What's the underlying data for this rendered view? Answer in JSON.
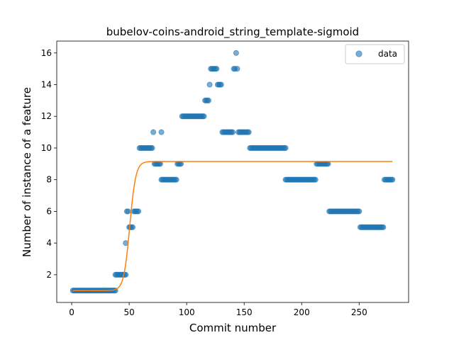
{
  "chart_data": {
    "type": "scatter",
    "title": "bubelov-coins-android_string_template-sigmoid",
    "xlabel": "Commit number",
    "ylabel": "Number of instance of a feature",
    "xlim": [
      -13,
      293
    ],
    "ylim": [
      0.25,
      16.75
    ],
    "xticks": [
      0,
      50,
      100,
      150,
      200,
      250
    ],
    "yticks": [
      2,
      4,
      6,
      8,
      10,
      12,
      14,
      16
    ],
    "legend": {
      "position": "top-right"
    },
    "colors": {
      "data": "#1f77b4",
      "fit": "#ff7f0e"
    },
    "series": [
      {
        "name": "data",
        "kind": "scatter",
        "points": [
          [
            1,
            1
          ],
          [
            2,
            1
          ],
          [
            3,
            1
          ],
          [
            4,
            1
          ],
          [
            5,
            1
          ],
          [
            6,
            1
          ],
          [
            7,
            1
          ],
          [
            8,
            1
          ],
          [
            9,
            1
          ],
          [
            10,
            1
          ],
          [
            11,
            1
          ],
          [
            12,
            1
          ],
          [
            13,
            1
          ],
          [
            14,
            1
          ],
          [
            15,
            1
          ],
          [
            16,
            1
          ],
          [
            17,
            1
          ],
          [
            18,
            1
          ],
          [
            19,
            1
          ],
          [
            20,
            1
          ],
          [
            21,
            1
          ],
          [
            22,
            1
          ],
          [
            23,
            1
          ],
          [
            24,
            1
          ],
          [
            25,
            1
          ],
          [
            26,
            1
          ],
          [
            27,
            1
          ],
          [
            28,
            1
          ],
          [
            29,
            1
          ],
          [
            30,
            1
          ],
          [
            31,
            1
          ],
          [
            32,
            1
          ],
          [
            33,
            1
          ],
          [
            34,
            1
          ],
          [
            35,
            1
          ],
          [
            36,
            1
          ],
          [
            37,
            1
          ],
          [
            38,
            1
          ],
          [
            38,
            2
          ],
          [
            39,
            2
          ],
          [
            40,
            2
          ],
          [
            41,
            2
          ],
          [
            42,
            2
          ],
          [
            43,
            2
          ],
          [
            44,
            2
          ],
          [
            45,
            2
          ],
          [
            46,
            2
          ],
          [
            47,
            2
          ],
          [
            47,
            4
          ],
          [
            48,
            6
          ],
          [
            49,
            6
          ],
          [
            50,
            5
          ],
          [
            51,
            5
          ],
          [
            52,
            5
          ],
          [
            53,
            5
          ],
          [
            54,
            6
          ],
          [
            55,
            6
          ],
          [
            56,
            6
          ],
          [
            57,
            6
          ],
          [
            58,
            6
          ],
          [
            59,
            10
          ],
          [
            60,
            10
          ],
          [
            61,
            10
          ],
          [
            62,
            10
          ],
          [
            63,
            10
          ],
          [
            64,
            10
          ],
          [
            65,
            10
          ],
          [
            66,
            10
          ],
          [
            67,
            10
          ],
          [
            68,
            10
          ],
          [
            69,
            10
          ],
          [
            70,
            10
          ],
          [
            71,
            11
          ],
          [
            72,
            9
          ],
          [
            73,
            9
          ],
          [
            74,
            9
          ],
          [
            75,
            9
          ],
          [
            76,
            9
          ],
          [
            77,
            9
          ],
          [
            78,
            11
          ],
          [
            78,
            8
          ],
          [
            79,
            8
          ],
          [
            80,
            8
          ],
          [
            81,
            8
          ],
          [
            82,
            8
          ],
          [
            83,
            8
          ],
          [
            84,
            8
          ],
          [
            85,
            8
          ],
          [
            86,
            8
          ],
          [
            87,
            8
          ],
          [
            88,
            8
          ],
          [
            89,
            8
          ],
          [
            90,
            8
          ],
          [
            91,
            8
          ],
          [
            92,
            9
          ],
          [
            93,
            9
          ],
          [
            94,
            9
          ],
          [
            95,
            9
          ],
          [
            96,
            12
          ],
          [
            97,
            12
          ],
          [
            98,
            12
          ],
          [
            99,
            12
          ],
          [
            100,
            12
          ],
          [
            101,
            12
          ],
          [
            102,
            12
          ],
          [
            103,
            12
          ],
          [
            104,
            12
          ],
          [
            105,
            12
          ],
          [
            106,
            12
          ],
          [
            107,
            12
          ],
          [
            108,
            12
          ],
          [
            109,
            12
          ],
          [
            110,
            12
          ],
          [
            111,
            12
          ],
          [
            112,
            12
          ],
          [
            113,
            12
          ],
          [
            114,
            12
          ],
          [
            115,
            12
          ],
          [
            116,
            13
          ],
          [
            117,
            13
          ],
          [
            118,
            13
          ],
          [
            119,
            13
          ],
          [
            120,
            14
          ],
          [
            121,
            15
          ],
          [
            122,
            15
          ],
          [
            123,
            15
          ],
          [
            124,
            15
          ],
          [
            125,
            15
          ],
          [
            126,
            15
          ],
          [
            127,
            14
          ],
          [
            128,
            14
          ],
          [
            129,
            14
          ],
          [
            130,
            14
          ],
          [
            131,
            11
          ],
          [
            132,
            11
          ],
          [
            133,
            11
          ],
          [
            134,
            11
          ],
          [
            135,
            11
          ],
          [
            136,
            11
          ],
          [
            137,
            11
          ],
          [
            138,
            11
          ],
          [
            139,
            11
          ],
          [
            140,
            11
          ],
          [
            141,
            15
          ],
          [
            142,
            15
          ],
          [
            143,
            16
          ],
          [
            144,
            15
          ],
          [
            145,
            11
          ],
          [
            146,
            11
          ],
          [
            147,
            11
          ],
          [
            148,
            11
          ],
          [
            149,
            11
          ],
          [
            150,
            11
          ],
          [
            151,
            11
          ],
          [
            152,
            11
          ],
          [
            153,
            11
          ],
          [
            154,
            11
          ],
          [
            155,
            10
          ],
          [
            156,
            10
          ],
          [
            157,
            10
          ],
          [
            158,
            10
          ],
          [
            159,
            10
          ],
          [
            160,
            10
          ],
          [
            161,
            10
          ],
          [
            162,
            10
          ],
          [
            163,
            10
          ],
          [
            164,
            10
          ],
          [
            165,
            10
          ],
          [
            166,
            10
          ],
          [
            167,
            10
          ],
          [
            168,
            10
          ],
          [
            169,
            10
          ],
          [
            170,
            10
          ],
          [
            171,
            10
          ],
          [
            172,
            10
          ],
          [
            173,
            10
          ],
          [
            174,
            10
          ],
          [
            175,
            10
          ],
          [
            176,
            10
          ],
          [
            177,
            10
          ],
          [
            178,
            10
          ],
          [
            179,
            10
          ],
          [
            180,
            10
          ],
          [
            181,
            10
          ],
          [
            182,
            10
          ],
          [
            183,
            10
          ],
          [
            184,
            10
          ],
          [
            185,
            10
          ],
          [
            186,
            10
          ],
          [
            186,
            8
          ],
          [
            187,
            8
          ],
          [
            188,
            8
          ],
          [
            189,
            8
          ],
          [
            190,
            8
          ],
          [
            191,
            8
          ],
          [
            192,
            8
          ],
          [
            193,
            8
          ],
          [
            194,
            8
          ],
          [
            195,
            8
          ],
          [
            196,
            8
          ],
          [
            197,
            8
          ],
          [
            198,
            8
          ],
          [
            199,
            8
          ],
          [
            200,
            8
          ],
          [
            201,
            8
          ],
          [
            202,
            8
          ],
          [
            203,
            8
          ],
          [
            204,
            8
          ],
          [
            205,
            8
          ],
          [
            206,
            8
          ],
          [
            207,
            8
          ],
          [
            208,
            8
          ],
          [
            209,
            8
          ],
          [
            210,
            8
          ],
          [
            211,
            8
          ],
          [
            212,
            8
          ],
          [
            213,
            9
          ],
          [
            214,
            9
          ],
          [
            215,
            9
          ],
          [
            216,
            9
          ],
          [
            217,
            9
          ],
          [
            218,
            9
          ],
          [
            219,
            9
          ],
          [
            220,
            9
          ],
          [
            221,
            9
          ],
          [
            222,
            9
          ],
          [
            223,
            9
          ],
          [
            224,
            6
          ],
          [
            225,
            6
          ],
          [
            226,
            6
          ],
          [
            227,
            6
          ],
          [
            228,
            6
          ],
          [
            229,
            6
          ],
          [
            230,
            6
          ],
          [
            231,
            6
          ],
          [
            232,
            6
          ],
          [
            233,
            6
          ],
          [
            234,
            6
          ],
          [
            235,
            6
          ],
          [
            236,
            6
          ],
          [
            237,
            6
          ],
          [
            238,
            6
          ],
          [
            239,
            6
          ],
          [
            240,
            6
          ],
          [
            241,
            6
          ],
          [
            242,
            6
          ],
          [
            243,
            6
          ],
          [
            244,
            6
          ],
          [
            245,
            6
          ],
          [
            246,
            6
          ],
          [
            247,
            6
          ],
          [
            248,
            6
          ],
          [
            249,
            6
          ],
          [
            250,
            6
          ],
          [
            251,
            5
          ],
          [
            252,
            5
          ],
          [
            253,
            5
          ],
          [
            254,
            5
          ],
          [
            255,
            5
          ],
          [
            256,
            5
          ],
          [
            257,
            5
          ],
          [
            258,
            5
          ],
          [
            259,
            5
          ],
          [
            260,
            5
          ],
          [
            261,
            5
          ],
          [
            262,
            5
          ],
          [
            263,
            5
          ],
          [
            264,
            5
          ],
          [
            265,
            5
          ],
          [
            266,
            5
          ],
          [
            267,
            5
          ],
          [
            268,
            5
          ],
          [
            269,
            5
          ],
          [
            270,
            5
          ],
          [
            271,
            5
          ],
          [
            272,
            8
          ],
          [
            273,
            8
          ],
          [
            274,
            8
          ],
          [
            275,
            8
          ],
          [
            276,
            8
          ],
          [
            277,
            8
          ],
          [
            278,
            8
          ],
          [
            279,
            8
          ]
        ]
      },
      {
        "kind": "line",
        "curve": "sigmoid",
        "params": {
          "L": 8.15,
          "x0": 50.5,
          "k": 0.38,
          "b": 1.0
        },
        "x_range": [
          1,
          279
        ]
      }
    ]
  }
}
